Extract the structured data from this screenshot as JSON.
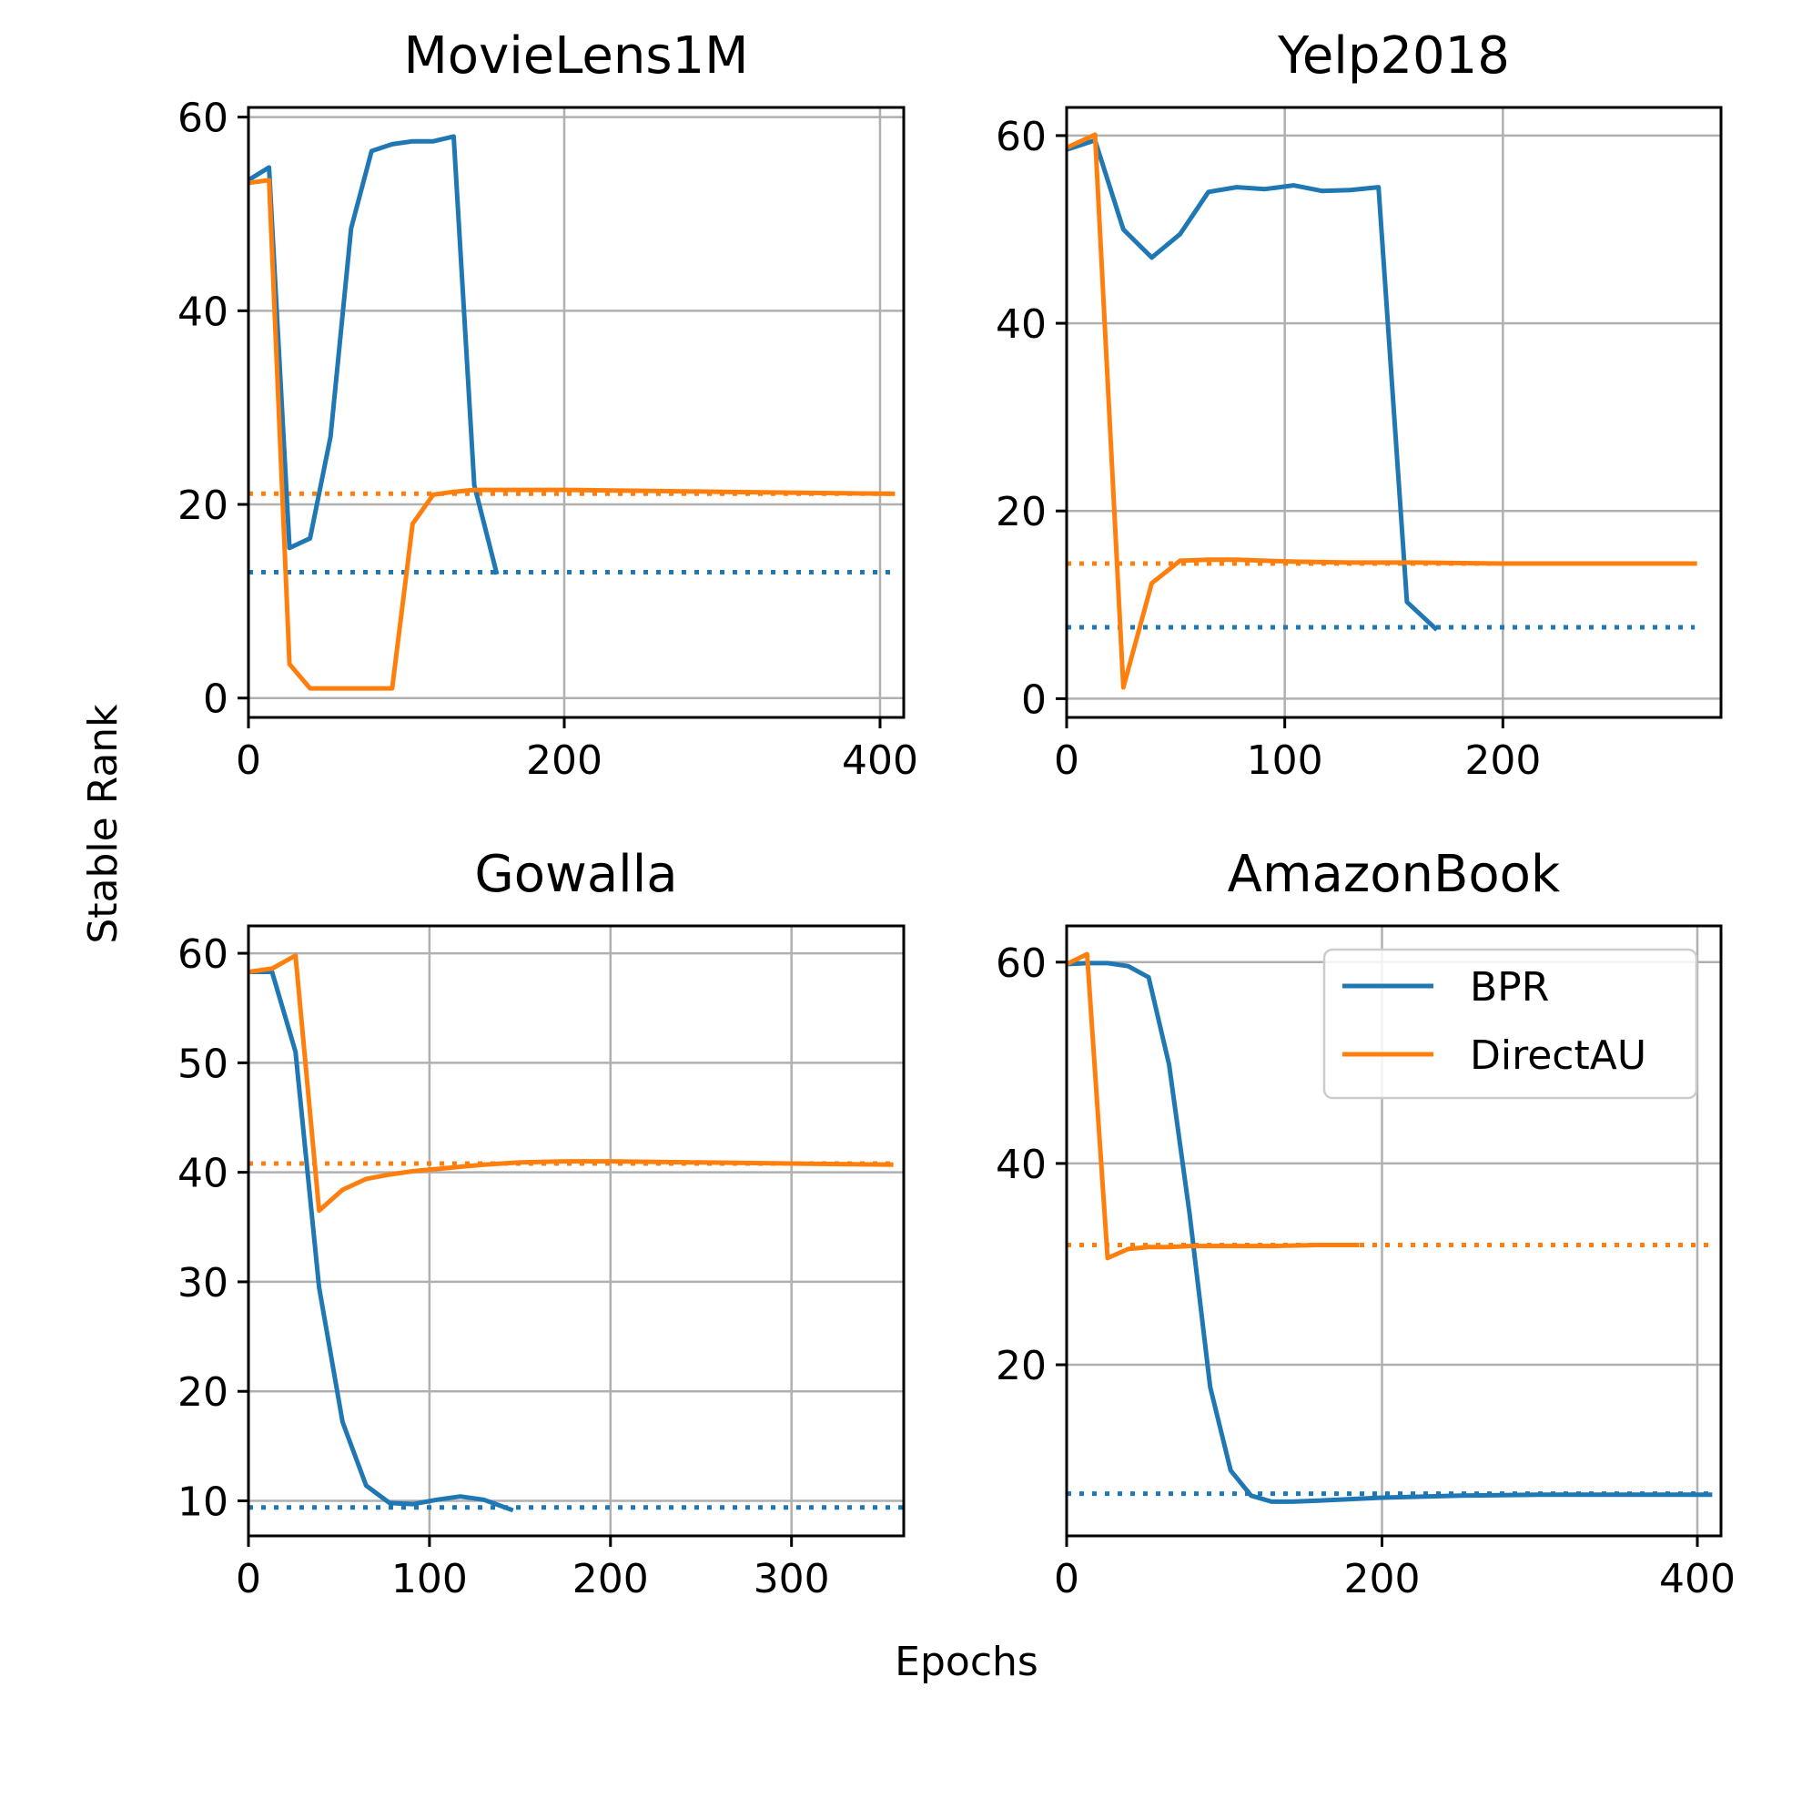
{
  "figure": {
    "xlabel": "Epochs",
    "ylabel": "Stable Rank"
  },
  "legend": {
    "entries": [
      {
        "label": "BPR",
        "color": "#1f77b4"
      },
      {
        "label": "DirectAU",
        "color": "#ff7f0e"
      }
    ],
    "placement": "upper-right of AmazonBook panel"
  },
  "chart_data": [
    {
      "type": "line",
      "title": "MovieLens1M",
      "xlim": [
        0,
        415
      ],
      "ylim": [
        -2,
        61
      ],
      "xticks": [
        0,
        200,
        400
      ],
      "yticks": [
        0,
        20,
        40,
        60
      ],
      "grid": true,
      "series": [
        {
          "name": "BPR",
          "color": "#1f77b4",
          "style": "solid",
          "x": [
            0,
            13,
            26,
            39,
            52,
            65,
            78,
            91,
            104,
            117,
            130,
            143,
            157
          ],
          "y": [
            53.5,
            54.8,
            15.5,
            16.5,
            27,
            48.5,
            56.5,
            57.2,
            57.5,
            57.5,
            58,
            22,
            13
          ]
        },
        {
          "name": "DirectAU",
          "color": "#ff7f0e",
          "style": "solid",
          "x": [
            0,
            13,
            26,
            39,
            52,
            65,
            78,
            91,
            104,
            117,
            130,
            143,
            160,
            200,
            250,
            300,
            350,
            408
          ],
          "y": [
            53.2,
            53.5,
            3.5,
            1,
            1,
            1,
            1,
            1,
            18,
            21,
            21.3,
            21.5,
            21.5,
            21.5,
            21.4,
            21.3,
            21.2,
            21.1
          ]
        },
        {
          "name": "BPR",
          "color": "#1f77b4",
          "style": "dotted",
          "x": [
            0,
            408
          ],
          "y": [
            13,
            13
          ]
        },
        {
          "name": "DirectAU",
          "color": "#ff7f0e",
          "style": "dotted",
          "x": [
            0,
            408
          ],
          "y": [
            21.1,
            21.1
          ]
        }
      ]
    },
    {
      "type": "line",
      "title": "Yelp2018",
      "xlim": [
        0,
        300
      ],
      "ylim": [
        -2,
        63
      ],
      "xticks": [
        0,
        100,
        200
      ],
      "yticks": [
        0,
        20,
        40,
        60
      ],
      "grid": true,
      "series": [
        {
          "name": "BPR",
          "color": "#1f77b4",
          "style": "solid",
          "x": [
            0,
            13,
            26,
            39,
            52,
            65,
            78,
            91,
            104,
            117,
            130,
            143,
            156,
            169
          ],
          "y": [
            58.5,
            59.5,
            50,
            47,
            49.5,
            54,
            54.5,
            54.3,
            54.7,
            54.1,
            54.2,
            54.5,
            10.3,
            7.5
          ]
        },
        {
          "name": "DirectAU",
          "color": "#ff7f0e",
          "style": "solid",
          "x": [
            0,
            13,
            26,
            39,
            52,
            65,
            78,
            91,
            104,
            130,
            160,
            200,
            240,
            288
          ],
          "y": [
            58.7,
            60.1,
            1.2,
            12.3,
            14.7,
            14.8,
            14.8,
            14.7,
            14.6,
            14.5,
            14.5,
            14.4,
            14.4,
            14.4
          ]
        },
        {
          "name": "BPR",
          "color": "#1f77b4",
          "style": "dotted",
          "x": [
            0,
            288
          ],
          "y": [
            7.6,
            7.6
          ]
        },
        {
          "name": "DirectAU",
          "color": "#ff7f0e",
          "style": "dotted",
          "x": [
            0,
            288
          ],
          "y": [
            14.4,
            14.4
          ]
        }
      ]
    },
    {
      "type": "line",
      "title": "Gowalla",
      "xlim": [
        0,
        362
      ],
      "ylim": [
        6.8,
        62.5
      ],
      "xticks": [
        0,
        100,
        200,
        300
      ],
      "yticks": [
        10,
        20,
        30,
        40,
        50,
        60
      ],
      "grid": true,
      "series": [
        {
          "name": "BPR",
          "color": "#1f77b4",
          "style": "solid",
          "x": [
            0,
            13,
            26,
            39,
            52,
            65,
            78,
            91,
            104,
            117,
            130,
            145
          ],
          "y": [
            58.3,
            58.3,
            51,
            29.5,
            17.2,
            11.4,
            9.8,
            9.7,
            10.1,
            10.4,
            10.1,
            9.2
          ]
        },
        {
          "name": "DirectAU",
          "color": "#ff7f0e",
          "style": "solid",
          "x": [
            0,
            13,
            26,
            39,
            52,
            65,
            78,
            91,
            104,
            117,
            130,
            150,
            175,
            200,
            250,
            300,
            355
          ],
          "y": [
            58.3,
            58.6,
            59.8,
            36.5,
            38.4,
            39.4,
            39.8,
            40.1,
            40.3,
            40.5,
            40.7,
            40.9,
            41,
            41,
            40.9,
            40.8,
            40.7
          ]
        },
        {
          "name": "BPR",
          "color": "#1f77b4",
          "style": "dotted",
          "x": [
            0,
            362
          ],
          "y": [
            9.4,
            9.4
          ]
        },
        {
          "name": "DirectAU",
          "color": "#ff7f0e",
          "style": "dotted",
          "x": [
            0,
            355
          ],
          "y": [
            40.8,
            40.8
          ]
        }
      ]
    },
    {
      "type": "line",
      "title": "AmazonBook",
      "xlim": [
        0,
        415
      ],
      "ylim": [
        3,
        63.6
      ],
      "xticks": [
        0,
        200,
        400
      ],
      "yticks": [
        20,
        40,
        60
      ],
      "grid": true,
      "series": [
        {
          "name": "BPR",
          "color": "#1f77b4",
          "style": "solid",
          "x": [
            0,
            13,
            26,
            39,
            52,
            65,
            78,
            91,
            104,
            117,
            130,
            143,
            160,
            200,
            250,
            300,
            350,
            408
          ],
          "y": [
            59.8,
            59.9,
            59.9,
            59.6,
            58.5,
            49.8,
            35,
            17.8,
            9.5,
            7,
            6.4,
            6.4,
            6.5,
            6.8,
            7,
            7.1,
            7.1,
            7.1
          ]
        },
        {
          "name": "DirectAU",
          "color": "#ff7f0e",
          "style": "solid",
          "x": [
            0,
            13,
            26,
            39,
            52,
            65,
            78,
            91,
            104,
            130,
            160,
            184
          ],
          "y": [
            59.8,
            60.8,
            30.6,
            31.5,
            31.7,
            31.7,
            31.8,
            31.8,
            31.8,
            31.8,
            31.9,
            31.9
          ]
        },
        {
          "name": "BPR",
          "color": "#1f77b4",
          "style": "dotted",
          "x": [
            0,
            408
          ],
          "y": [
            7.2,
            7.2
          ]
        },
        {
          "name": "DirectAU",
          "color": "#ff7f0e",
          "style": "dotted",
          "x": [
            0,
            408
          ],
          "y": [
            31.9,
            31.9
          ]
        }
      ]
    }
  ]
}
